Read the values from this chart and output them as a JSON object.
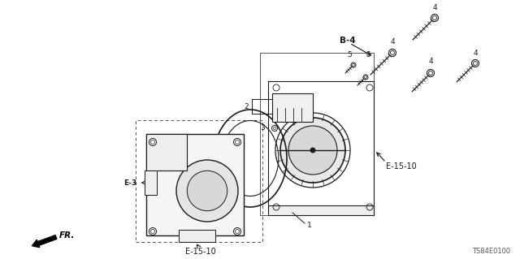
{
  "part_number": "TS84E0100",
  "background_color": "#ffffff",
  "labels": {
    "B4": "B-4",
    "E3": "E-3",
    "E1510_bottom": "E-15-10",
    "E1510_right": "E-15-10",
    "FR": "FR.",
    "part1": "1",
    "part2": "2",
    "part3": "3",
    "part4": "4",
    "part5": "5"
  },
  "text_color": "#1a1a1a",
  "line_color": "#1a1a1a",
  "dashed_color": "#333333",
  "font_size": 6.5
}
